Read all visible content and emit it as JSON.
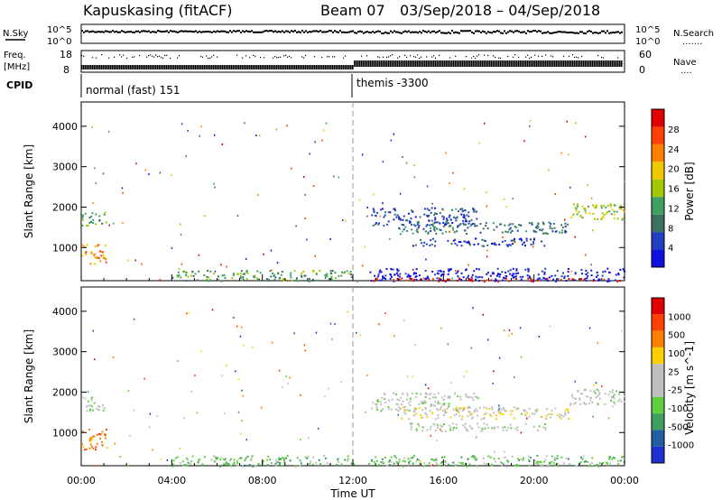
{
  "header": {
    "station": "Kapuskasing (fitACF)",
    "beam": "Beam 07",
    "dates": "03/Sep/2018 – 04/Sep/2018"
  },
  "strip_top": {
    "left_label": "N.Sky",
    "left_ticks": [
      "10^5",
      "10^0"
    ],
    "right_label": "N.Search",
    "right_ticks": [
      "10^5",
      "10^0"
    ],
    "right_dots": "......."
  },
  "strip_freq": {
    "left_label_1": "Freq.",
    "left_label_2": "[MHz]",
    "left_ticks": [
      "18",
      "8"
    ],
    "right_label": "Nave",
    "right_ticks": [
      "60",
      "0"
    ],
    "right_dots": "...."
  },
  "cpid": {
    "label": "CPID",
    "mode1": "normal (fast) 151",
    "mode2": "themis -3300"
  },
  "colors": {
    "power": [
      "#1010e0",
      "#2040c0",
      "#3c7060",
      "#40a060",
      "#a0c800",
      "#f0c800",
      "#ff8000",
      "#ff4000",
      "#e00000"
    ],
    "velocity": [
      "#2030d0",
      "#2060a0",
      "#40a060",
      "#60d040",
      "#c0c0c0",
      "#c0c0c0",
      "#ffd000",
      "#ff8000",
      "#ff4000",
      "#e00000"
    ]
  },
  "chart_data": [
    {
      "type": "heatmap",
      "name": "power-panel",
      "ylabel": "Slant Range [km]",
      "yticks": [
        1000,
        2000,
        3000,
        4000
      ],
      "ylim": [
        180,
        4600
      ],
      "xlim": [
        0,
        24
      ],
      "colorbar_label": "Power [dB]",
      "colorbar_ticks": [
        "4",
        "8",
        "12",
        "16",
        "20",
        "24",
        "28"
      ],
      "echo_bands": [
        {
          "t0": 0.0,
          "t1": 1.1,
          "r0": 1550,
          "r1": 1900,
          "level": 3
        },
        {
          "t0": 0.0,
          "t1": 1.1,
          "r0": 600,
          "r1": 1100,
          "level": 6
        },
        {
          "t0": 12.8,
          "t1": 17.5,
          "r0": 1550,
          "r1": 2000,
          "level": 1
        },
        {
          "t0": 14.0,
          "t1": 21.5,
          "r0": 1350,
          "r1": 1650,
          "level": 2
        },
        {
          "t0": 14.5,
          "t1": 20.5,
          "r0": 1050,
          "r1": 1250,
          "level": 1
        },
        {
          "t0": 21.5,
          "t1": 24.0,
          "r0": 1700,
          "r1": 2100,
          "level": 4
        },
        {
          "t0": 12.7,
          "t1": 24.0,
          "r0": 180,
          "r1": 500,
          "level": 0
        },
        {
          "t0": 12.7,
          "t1": 24.0,
          "r0": 180,
          "r1": 260,
          "level": 8
        },
        {
          "t0": 4.0,
          "t1": 12.0,
          "r0": 180,
          "r1": 450,
          "level": 3
        }
      ]
    },
    {
      "type": "heatmap",
      "name": "velocity-panel",
      "ylabel": "Slant Range [km]",
      "xlabel": "Time UT",
      "xticks": [
        "00:00",
        "04:00",
        "08:00",
        "12:00",
        "16:00",
        "20:00",
        "00:00"
      ],
      "yticks": [
        1000,
        2000,
        3000,
        4000
      ],
      "ylim": [
        180,
        4600
      ],
      "xlim": [
        0,
        24
      ],
      "colorbar_label": "Velocity [m s^-1]",
      "colorbar_ticks": [
        "1000",
        "500",
        "100",
        "25",
        "-25",
        "-100",
        "-500",
        "-1000"
      ],
      "echo_bands": [
        {
          "t0": 0.0,
          "t1": 1.1,
          "r0": 1550,
          "r1": 1900,
          "level": 4
        },
        {
          "t0": 0.0,
          "t1": 1.1,
          "r0": 600,
          "r1": 1100,
          "level": 7
        },
        {
          "t0": 12.8,
          "t1": 17.5,
          "r0": 1550,
          "r1": 2000,
          "level": 4
        },
        {
          "t0": 14.0,
          "t1": 21.5,
          "r0": 1350,
          "r1": 1650,
          "level": 5
        },
        {
          "t0": 14.5,
          "t1": 20.5,
          "r0": 1050,
          "r1": 1250,
          "level": 4
        },
        {
          "t0": 21.5,
          "t1": 24.0,
          "r0": 1700,
          "r1": 2100,
          "level": 4
        },
        {
          "t0": 12.7,
          "t1": 24.0,
          "r0": 180,
          "r1": 450,
          "level": 3
        },
        {
          "t0": 4.0,
          "t1": 12.0,
          "r0": 180,
          "r1": 450,
          "level": 3
        }
      ]
    }
  ]
}
